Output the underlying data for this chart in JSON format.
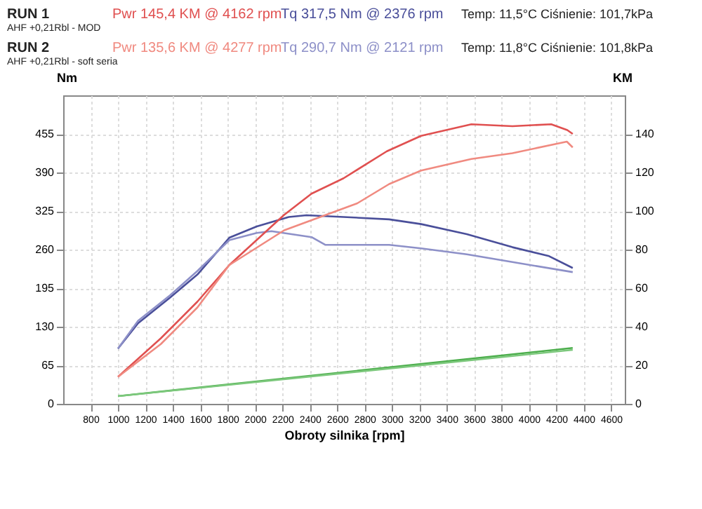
{
  "chart_data": {
    "type": "line",
    "xlabel": "Obroty silnika [rpm]",
    "ylabel": "Nm",
    "y2label": "KM",
    "xlim": [
      600,
      4700
    ],
    "xticks": [
      800,
      1000,
      1200,
      1400,
      1600,
      1800,
      2000,
      2200,
      2400,
      2600,
      2800,
      3000,
      3200,
      3400,
      3600,
      3800,
      4000,
      4200,
      4400,
      4600
    ],
    "ylim": [
      0,
      520
    ],
    "yticks": [
      0,
      65,
      130,
      195,
      260,
      325,
      390,
      455
    ],
    "y2lim": [
      0,
      160
    ],
    "y2ticks": [
      0,
      20,
      40,
      60,
      80,
      100,
      120,
      140
    ],
    "grid": true,
    "line_style": "solid",
    "marker": "none",
    "legend": "top left",
    "annotations": [
      "RUN 1",
      "AHF +0,21Rbl - MOD",
      "RUN 2",
      "AHF +0,21Rbl - soft seria",
      "Temp: 11,5°C   Ciśnienie: 101,7kPa",
      "Temp: 11,8°C   Ciśnienie: 101,8kPa"
    ],
    "series": [
      {
        "name": "Pwr 145,4 KM @ 4162 rpm",
        "color": "#e05050",
        "axis": "y2",
        "x": [
          1000,
          1313,
          1580,
          1813,
          2013,
          2213,
          2413,
          2647,
          2963,
          3213,
          3580,
          3880,
          4163,
          4280,
          4320
        ],
        "values": [
          14,
          34,
          53,
          72,
          85,
          98,
          109,
          117,
          131,
          139,
          145,
          144,
          145,
          142,
          140
        ]
      },
      {
        "name": "Tq 317,5 Nm @ 2376 rpm",
        "color": "#4a4f9a",
        "axis": "y",
        "x": [
          1000,
          1147,
          1380,
          1580,
          1813,
          2013,
          2247,
          2376,
          2647,
          2980,
          3213,
          3547,
          3880,
          4147,
          4320
        ],
        "values": [
          93,
          136,
          179,
          218,
          280,
          299,
          315,
          318,
          315,
          311,
          303,
          286,
          264,
          249,
          229
        ]
      },
      {
        "name": "Pwr 135,6 KM @ 4277 rpm",
        "color": "#f08a80",
        "axis": "y2",
        "x": [
          1000,
          1313,
          1580,
          1813,
          2013,
          2213,
          2480,
          2747,
          2980,
          3213,
          3580,
          3880,
          4277,
          4320
        ],
        "values": [
          14,
          31,
          50,
          72,
          81,
          90,
          97,
          104,
          114,
          121,
          127,
          130,
          136,
          133
        ]
      },
      {
        "name": "Tq 290,7 Nm @ 2121 rpm",
        "color": "#8d90c8",
        "axis": "y",
        "x": [
          1000,
          1147,
          1380,
          1580,
          1813,
          2013,
          2121,
          2413,
          2513,
          2980,
          3213,
          3547,
          3880,
          4320
        ],
        "values": [
          93,
          140,
          183,
          224,
          276,
          288,
          291,
          281,
          268,
          268,
          262,
          252,
          239,
          222
        ]
      },
      {
        "color": "#4cae4c",
        "axis": "y2",
        "x": [
          1000,
          4320
        ],
        "values": [
          4,
          29
        ]
      },
      {
        "color": "#7cc87c",
        "axis": "y2",
        "x": [
          1000,
          4320
        ],
        "values": [
          4,
          28
        ]
      }
    ]
  }
}
